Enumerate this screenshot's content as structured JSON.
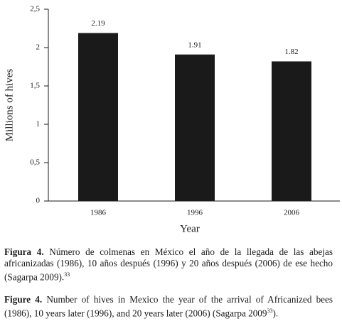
{
  "chart_data": {
    "type": "bar",
    "x_label": "Year",
    "y_label": "Millions of hives",
    "categories": [
      "1986",
      "1996",
      "2006"
    ],
    "values": [
      2.19,
      1.91,
      1.82
    ],
    "color": "#1a1a1a",
    "ylim": [
      0,
      2.5
    ],
    "yticks": [
      0,
      {
        "value": 0.5,
        "label": "0,5"
      },
      1,
      {
        "value": 1.5,
        "label": "1,5"
      },
      2,
      {
        "value": 2.5,
        "label": "2,5"
      }
    ],
    "grid": false
  },
  "captions": [
    {
      "label": "Figura 4.",
      "text": " Número de colmenas en México el año de la llegada de las abejas africanizadas (1986), 10 años después (1996) y 20 años después (2006) de ese hecho (Sagarpa 2009).",
      "ref": "33"
    },
    {
      "label": "Figure 4.",
      "text": " Number of hives in Mexico the year of the arrival of Africanized bees (1986), 10 years later (1996), and 20 years later (2006) (Sagarpa 2009",
      "ref": "33",
      "tail": ")."
    }
  ]
}
